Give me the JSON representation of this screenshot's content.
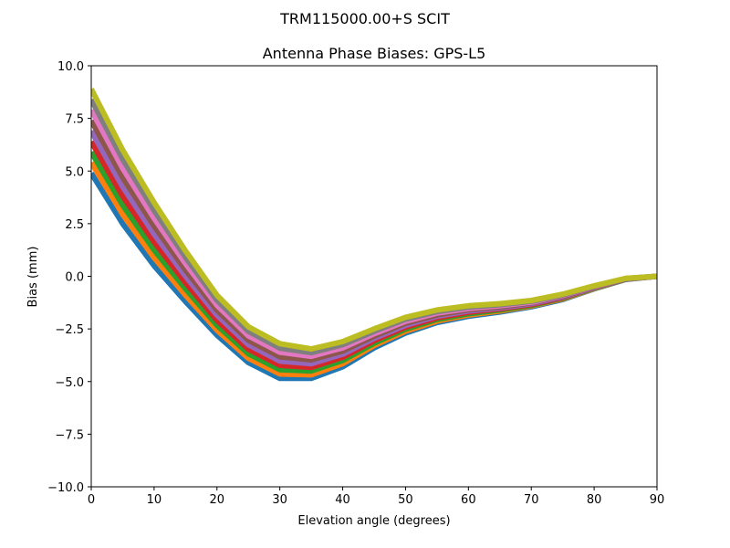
{
  "figure": {
    "suptitle": "TRM115000.00+S  SCIT"
  },
  "chart_data": {
    "type": "line",
    "title": "Antenna Phase Biases: GPS-L5",
    "xlabel": "Elevation angle (degrees)",
    "ylabel": "Bias (mm)",
    "xlim": [
      0,
      90
    ],
    "ylim": [
      -10,
      10
    ],
    "grid": false,
    "legend": "none",
    "xticks": [
      0,
      10,
      20,
      30,
      40,
      50,
      60,
      70,
      80,
      90
    ],
    "xtick_labels": [
      "0",
      "10",
      "20",
      "30",
      "40",
      "50",
      "60",
      "70",
      "80",
      "90"
    ],
    "yticks": [
      10,
      7.5,
      5,
      2.5,
      0,
      -2.5,
      -5,
      -7.5,
      -10
    ],
    "ytick_labels": [
      "10.0",
      "7.5",
      "5.0",
      "2.5",
      "0.0",
      "−2.5",
      "−5.0",
      "−7.5",
      "−10.0"
    ],
    "x": [
      0,
      5,
      10,
      15,
      20,
      25,
      30,
      35,
      40,
      45,
      50,
      55,
      60,
      65,
      70,
      75,
      80,
      85,
      90
    ],
    "colors": [
      "#1f77b4",
      "#ff7f0e",
      "#2ca02c",
      "#d62728",
      "#9467bd",
      "#8c564b",
      "#e377c2",
      "#7f7f7f",
      "#bcbd22",
      "#17becf"
    ],
    "series": [
      {
        "values": [
          4.9,
          2.5,
          0.5,
          -1.2,
          -2.8,
          -4.1,
          -4.85,
          -4.85,
          -4.3,
          -3.4,
          -2.7,
          -2.2,
          -1.9,
          -1.7,
          -1.45,
          -1.1,
          -0.6,
          -0.15,
          0
        ]
      },
      {
        "values": [
          5.4,
          2.94,
          0.88,
          -0.9,
          -2.56,
          -3.89,
          -4.64,
          -4.68,
          -4.15,
          -3.29,
          -2.61,
          -2.13,
          -1.84,
          -1.65,
          -1.41,
          -1.07,
          -0.58,
          -0.14,
          0
        ]
      },
      {
        "values": [
          5.9,
          3.38,
          1.25,
          -0.6,
          -2.33,
          -3.68,
          -4.44,
          -4.5,
          -4.0,
          -3.18,
          -2.51,
          -2.05,
          -1.78,
          -1.6,
          -1.38,
          -1.04,
          -0.56,
          -0.14,
          0
        ]
      },
      {
        "values": [
          6.4,
          3.81,
          1.63,
          -0.3,
          -2.09,
          -3.46,
          -4.23,
          -4.33,
          -3.85,
          -3.06,
          -2.42,
          -1.98,
          -1.71,
          -1.55,
          -1.34,
          -1.01,
          -0.54,
          -0.13,
          0
        ]
      },
      {
        "values": [
          6.9,
          4.25,
          2.0,
          0.0,
          -1.85,
          -3.25,
          -4.03,
          -4.15,
          -3.7,
          -2.95,
          -2.33,
          -1.9,
          -1.65,
          -1.5,
          -1.3,
          -0.98,
          -0.53,
          -0.13,
          0
        ]
      },
      {
        "values": [
          7.4,
          4.69,
          2.38,
          0.3,
          -1.61,
          -3.04,
          -3.82,
          -3.97,
          -3.55,
          -2.84,
          -2.23,
          -1.83,
          -1.59,
          -1.45,
          -1.26,
          -0.94,
          -0.51,
          -0.12,
          0
        ]
      },
      {
        "values": [
          7.9,
          5.13,
          2.75,
          0.6,
          -1.38,
          -2.83,
          -3.61,
          -3.8,
          -3.4,
          -2.73,
          -2.14,
          -1.75,
          -1.53,
          -1.4,
          -1.23,
          -0.91,
          -0.49,
          -0.11,
          0
        ]
      },
      {
        "values": [
          8.4,
          5.56,
          3.13,
          0.9,
          -1.14,
          -2.61,
          -3.41,
          -3.63,
          -3.25,
          -2.61,
          -2.04,
          -1.68,
          -1.46,
          -1.35,
          -1.19,
          -0.88,
          -0.47,
          -0.11,
          0
        ]
      },
      {
        "values": [
          8.9,
          6.0,
          3.5,
          1.2,
          -0.9,
          -2.4,
          -3.2,
          -3.45,
          -3.1,
          -2.5,
          -1.95,
          -1.6,
          -1.4,
          -1.3,
          -1.15,
          -0.85,
          -0.45,
          -0.1,
          0
        ]
      }
    ]
  }
}
